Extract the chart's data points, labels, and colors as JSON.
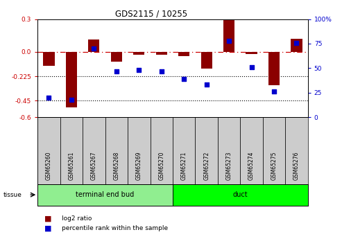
{
  "title": "GDS2115 / 10255",
  "samples": [
    "GSM65260",
    "GSM65261",
    "GSM65267",
    "GSM65268",
    "GSM65269",
    "GSM65270",
    "GSM65271",
    "GSM65272",
    "GSM65273",
    "GSM65274",
    "GSM65275",
    "GSM65276"
  ],
  "log2_ratio": [
    -0.13,
    -0.51,
    0.11,
    -0.09,
    -0.03,
    -0.025,
    -0.04,
    -0.155,
    0.29,
    -0.02,
    -0.31,
    0.12
  ],
  "percentile_rank": [
    20,
    18,
    70,
    47,
    48,
    47,
    39,
    33,
    78,
    51,
    26,
    76
  ],
  "groups": [
    {
      "label": "terminal end bud",
      "start": 0,
      "end": 6,
      "color": "#90EE90"
    },
    {
      "label": "duct",
      "start": 6,
      "end": 12,
      "color": "#00FF00"
    }
  ],
  "bar_color": "#8B0000",
  "dot_color": "#0000CD",
  "ylim_left": [
    -0.6,
    0.3
  ],
  "ylim_right": [
    0,
    100
  ],
  "yticks_left": [
    0.3,
    0.0,
    -0.225,
    -0.45,
    -0.6
  ],
  "yticks_right": [
    100,
    75,
    50,
    25,
    0
  ],
  "hlines": [
    -0.225,
    -0.45
  ],
  "zero_line": 0.0,
  "background_color": "#ffffff",
  "tissue_label": "tissue",
  "legend_log2": "log2 ratio",
  "legend_pct": "percentile rank within the sample",
  "cell_color": "#CCCCCC",
  "group_color_1": "#90EE90",
  "group_color_2": "#00FF00"
}
